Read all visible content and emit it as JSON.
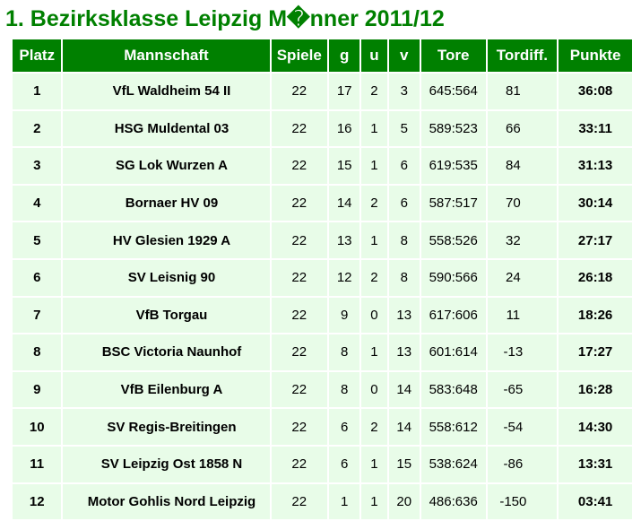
{
  "title": "1. Bezirksklasse Leipzig M�nner 2011/12",
  "headers": {
    "place": "Platz",
    "team": "Mannschaft",
    "played": "Spiele",
    "won": "g",
    "drawn": "u",
    "lost": "v",
    "goals": "Tore",
    "diff": "Tordiff.",
    "points": "Punkte"
  },
  "rows": [
    {
      "place": "1",
      "team": "VfL Waldheim 54 II",
      "played": "22",
      "won": "17",
      "drawn": "2",
      "lost": "3",
      "goals": "645:564",
      "diff": "81",
      "points": "36:08"
    },
    {
      "place": "2",
      "team": "HSG Muldental 03",
      "played": "22",
      "won": "16",
      "drawn": "1",
      "lost": "5",
      "goals": "589:523",
      "diff": "66",
      "points": "33:11"
    },
    {
      "place": "3",
      "team": "SG Lok Wurzen A",
      "played": "22",
      "won": "15",
      "drawn": "1",
      "lost": "6",
      "goals": "619:535",
      "diff": "84",
      "points": "31:13"
    },
    {
      "place": "4",
      "team": "Bornaer HV 09",
      "played": "22",
      "won": "14",
      "drawn": "2",
      "lost": "6",
      "goals": "587:517",
      "diff": "70",
      "points": "30:14"
    },
    {
      "place": "5",
      "team": "HV Glesien 1929 A",
      "played": "22",
      "won": "13",
      "drawn": "1",
      "lost": "8",
      "goals": "558:526",
      "diff": "32",
      "points": "27:17"
    },
    {
      "place": "6",
      "team": "SV Leisnig 90",
      "played": "22",
      "won": "12",
      "drawn": "2",
      "lost": "8",
      "goals": "590:566",
      "diff": "24",
      "points": "26:18"
    },
    {
      "place": "7",
      "team": "VfB Torgau",
      "played": "22",
      "won": "9",
      "drawn": "0",
      "lost": "13",
      "goals": "617:606",
      "diff": "11",
      "points": "18:26"
    },
    {
      "place": "8",
      "team": "BSC Victoria Naunhof",
      "played": "22",
      "won": "8",
      "drawn": "1",
      "lost": "13",
      "goals": "601:614",
      "diff": "-13",
      "points": "17:27"
    },
    {
      "place": "9",
      "team": "VfB Eilenburg A",
      "played": "22",
      "won": "8",
      "drawn": "0",
      "lost": "14",
      "goals": "583:648",
      "diff": "-65",
      "points": "16:28"
    },
    {
      "place": "10",
      "team": "SV Regis-Breitingen",
      "played": "22",
      "won": "6",
      "drawn": "2",
      "lost": "14",
      "goals": "558:612",
      "diff": "-54",
      "points": "14:30"
    },
    {
      "place": "11",
      "team": "SV Leipzig Ost 1858 N",
      "played": "22",
      "won": "6",
      "drawn": "1",
      "lost": "15",
      "goals": "538:624",
      "diff": "-86",
      "points": "13:31"
    },
    {
      "place": "12",
      "team": "Motor Gohlis Nord Leipzig",
      "played": "22",
      "won": "1",
      "drawn": "1",
      "lost": "20",
      "goals": "486:636",
      "diff": "-150",
      "points": "03:41"
    }
  ]
}
